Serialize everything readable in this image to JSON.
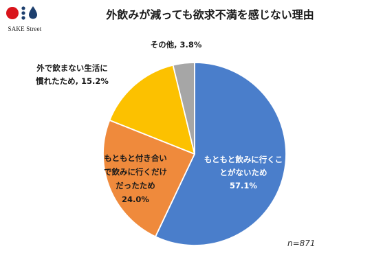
{
  "header": {
    "title": "外飲みが減っても欲求不満を感じない理由",
    "logo_text": "SAKE Street"
  },
  "chart_data": {
    "type": "pie",
    "title": "外飲みが減っても欲求不満を感じない理由",
    "start_angle_deg": 0,
    "direction": "clockwise",
    "slices": [
      {
        "label": "もともと飲みに行くことがないため",
        "label_lines": [
          "もともと飲みに行くこ",
          "とがないため"
        ],
        "value": 57.1,
        "value_text": "57.1%",
        "color": "#4a7ecb",
        "text_color": "#ffffff"
      },
      {
        "label": "もともと付き合いで飲みに行くだけだったため",
        "label_lines": [
          "もともと付き合い",
          "で飲みに行くだけ",
          "だったため"
        ],
        "value": 24.0,
        "value_text": "24.0%",
        "color": "#ef8a3c",
        "text_color": "#1a1a1a"
      },
      {
        "label": "外で飲まない生活に慣れたため",
        "label_lines": [
          "外で飲まない生活に",
          "慣れたため, 15.2%"
        ],
        "value": 15.2,
        "value_text": "15.2%",
        "color": "#fcc100",
        "text_color": "#1a1a1a"
      },
      {
        "label": "その他",
        "label_lines": [
          "その他, 3.8%"
        ],
        "value": 3.8,
        "value_text": "3.8%",
        "color": "#a6a6a6",
        "text_color": "#1a1a1a"
      }
    ],
    "note": "n=871"
  },
  "colors": {
    "logo_red": "#d9141b",
    "logo_navy": "#1d3f6e"
  }
}
